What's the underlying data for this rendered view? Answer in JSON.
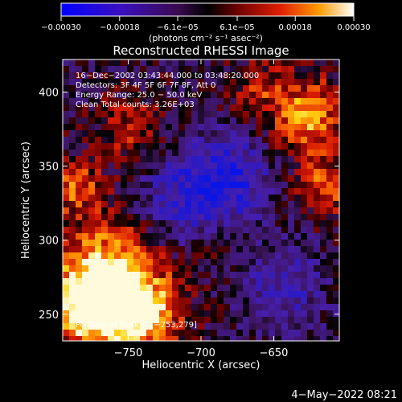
{
  "chart_data": {
    "type": "heatmap",
    "title": "Reconstructed RHESSI Image",
    "xlabel": "Heliocentric X (arcsec)",
    "ylabel": "Heliocentric Y (arcsec)",
    "xlim": [
      -795,
      -605
    ],
    "ylim": [
      232,
      422
    ],
    "x_ticks": [
      -750,
      -700,
      -650
    ],
    "x_tick_labels": [
      "−750",
      "−700",
      "−650"
    ],
    "y_ticks": [
      250,
      300,
      350,
      400
    ],
    "y_tick_labels": [
      "250",
      "300",
      "350",
      "400"
    ],
    "colorbar": {
      "min": -0.0003,
      "max": 0.0003,
      "ticks": [
        -0.0003,
        -0.00018,
        -6.1e-05,
        6.1e-05,
        0.00018,
        0.0003
      ],
      "tick_labels": [
        "−0.00030",
        "−0.00018",
        "−6.1e−05",
        "6.1e−05",
        "0.00018",
        "0.00030"
      ],
      "units": "(photons cm⁻² s⁻¹ asec⁻²)"
    },
    "annotations": [
      "16−Dec−2002 03:43:44.000 to 03:48:20.000",
      "Detectors: 3F 4F 5F 6F 7F 8F, Att 0",
      "Energy Range: 25.0 − 50.0 keV",
      "Clean    Total counts: 3.26E+03"
    ],
    "peak_label": "Position of Peak = [−753,279]",
    "peak": {
      "x": -753,
      "y": 279
    },
    "grid": false
  },
  "footer": {
    "timestamp": "4−May−2022 08:21"
  },
  "colors": {
    "background": "#000000",
    "text": "#ffffff",
    "colormap": [
      "#0000ff",
      "#4a1aa0",
      "#2a0a3a",
      "#000000",
      "#5a0000",
      "#c81000",
      "#ff6a00",
      "#ffd200",
      "#ffffff"
    ]
  }
}
